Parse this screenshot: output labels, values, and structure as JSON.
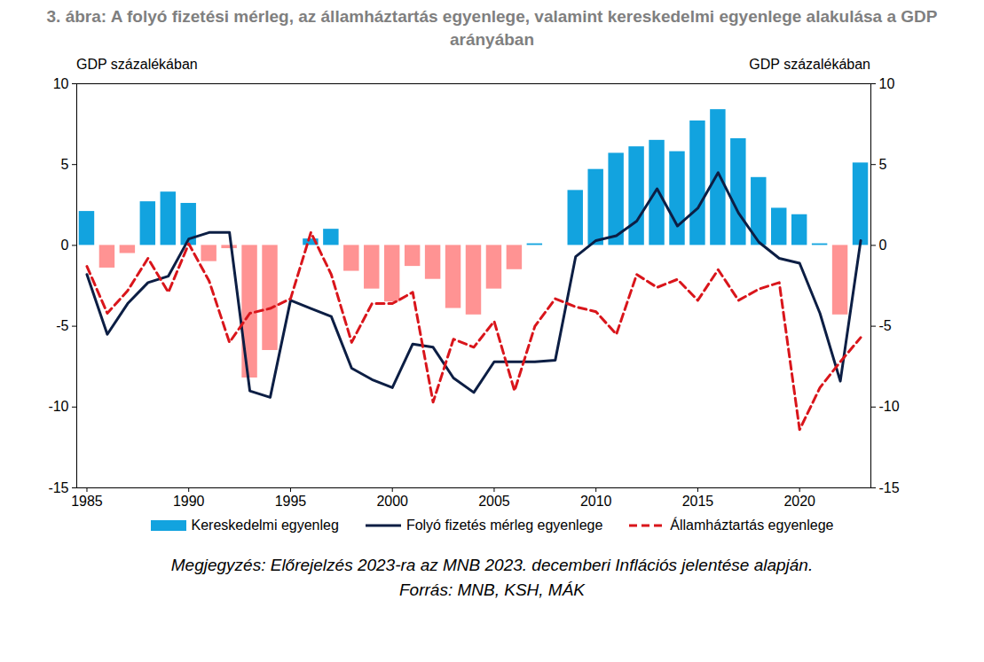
{
  "chart_data": {
    "type": "bar",
    "title": "3. ábra: A folyó fizetési mérleg, az államháztartás egyenlege, valamint kereskedelmi egyenlege alakulása a GDP arányában",
    "y_label": "GDP százalékában",
    "y2_label": "GDP százalékában",
    "notes": [
      "Megjegyzés: Előrejelzés 2023-ra az MNB 2023. decemberi Inflációs jelentése alapján.",
      "Forrás: MNB, KSH, MÁK"
    ],
    "x": [
      1985,
      1986,
      1987,
      1988,
      1989,
      1990,
      1991,
      1992,
      1993,
      1994,
      1995,
      1996,
      1997,
      1998,
      1999,
      2000,
      2001,
      2002,
      2003,
      2004,
      2005,
      2006,
      2007,
      2008,
      2009,
      2010,
      2011,
      2012,
      2013,
      2014,
      2015,
      2016,
      2017,
      2018,
      2019,
      2020,
      2021,
      2022,
      2023
    ],
    "xlim": [
      1984.5,
      2023.5
    ],
    "xticks": [
      1985,
      1990,
      1995,
      2000,
      2005,
      2010,
      2015,
      2020
    ],
    "ylim": [
      -15,
      10
    ],
    "yticks": [
      -15,
      -10,
      -5,
      0,
      5,
      10
    ],
    "y2lim": [
      -15,
      10
    ],
    "y2ticks": [
      -15,
      -10,
      -5,
      0,
      5,
      10
    ],
    "grid": false,
    "legend": "bottom",
    "series": [
      {
        "name": "Kereskedelmi egyenleg",
        "type": "bar",
        "color": "#12a3df",
        "values": [
          2.1,
          -1.4,
          -0.5,
          2.7,
          3.3,
          2.6,
          -1.0,
          -0.2,
          -8.2,
          -6.5,
          0,
          0.4,
          1.0,
          -1.6,
          -2.7,
          -3.5,
          -1.3,
          -2.1,
          -3.9,
          -4.3,
          -2.7,
          -1.5,
          0.1,
          0,
          3.4,
          4.7,
          5.7,
          6.1,
          6.5,
          5.8,
          7.7,
          8.4,
          6.6,
          4.2,
          2.3,
          1.9,
          0.1,
          -4.3,
          5.1
        ],
        "colors": [
          "#12a3df",
          "#ff9393",
          "#ff9393",
          "#12a3df",
          "#12a3df",
          "#12a3df",
          "#ff9393",
          "#ff9393",
          "#ff9393",
          "#ff9393",
          "#12a3df",
          "#12a3df",
          "#12a3df",
          "#ff9393",
          "#ff9393",
          "#ff9393",
          "#ff9393",
          "#ff9393",
          "#ff9393",
          "#ff9393",
          "#ff9393",
          "#ff9393",
          "#12a3df",
          "#12a3df",
          "#12a3df",
          "#12a3df",
          "#12a3df",
          "#12a3df",
          "#12a3df",
          "#12a3df",
          "#12a3df",
          "#12a3df",
          "#12a3df",
          "#12a3df",
          "#12a3df",
          "#12a3df",
          "#12a3df",
          "#ff9393",
          "#12a3df"
        ]
      },
      {
        "name": "Folyó fizetés mérleg egyenlege",
        "type": "line",
        "line_style": "solid",
        "color": "#0c1e44",
        "values": [
          -1.8,
          -5.5,
          -3.6,
          -2.3,
          -1.9,
          0.4,
          0.8,
          0.8,
          -9.0,
          -9.4,
          -3.4,
          -3.9,
          -4.4,
          -7.6,
          -8.3,
          -8.8,
          -6.1,
          -6.3,
          -8.2,
          -9.1,
          -7.2,
          -7.2,
          -7.2,
          -7.1,
          -0.7,
          0.3,
          0.6,
          1.5,
          3.5,
          1.2,
          2.3,
          4.5,
          2.0,
          0.2,
          -0.8,
          -1.1,
          -4.2,
          -8.4,
          0.3
        ]
      },
      {
        "name": "Államháztartás egyenlege",
        "type": "line",
        "line_style": "dashed",
        "color": "#d9151b",
        "values": [
          -1.3,
          -4.2,
          -2.8,
          -0.8,
          -2.9,
          0.1,
          -2.2,
          -6.0,
          -4.2,
          -3.9,
          -3.3,
          0.8,
          -1.8,
          -6.0,
          -3.6,
          -3.6,
          -2.9,
          -9.7,
          -5.8,
          -6.3,
          -4.7,
          -9.0,
          -5.0,
          -3.3,
          -3.8,
          -4.1,
          -5.5,
          -1.8,
          -2.6,
          -2.1,
          -3.4,
          -1.5,
          -3.4,
          -2.7,
          -2.3,
          -11.4,
          -8.8,
          -7.2,
          -5.7
        ]
      }
    ]
  }
}
